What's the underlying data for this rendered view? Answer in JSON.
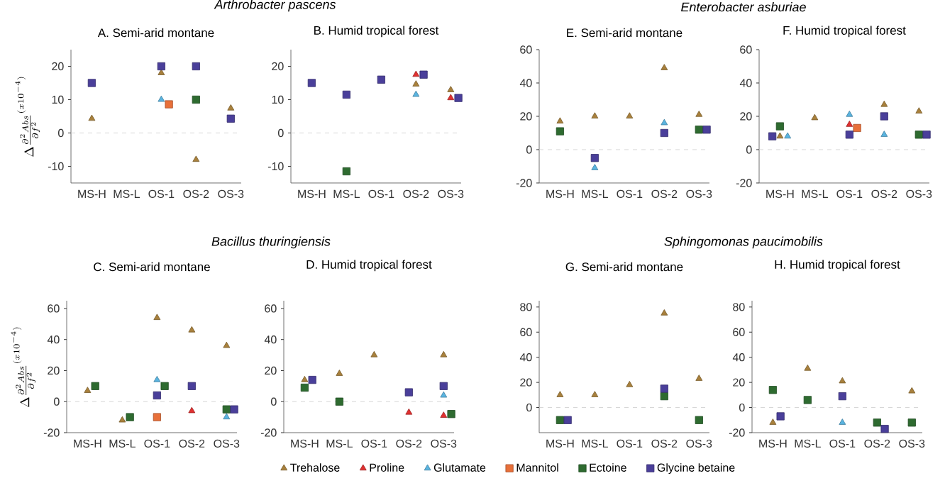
{
  "chart_data": [
    {
      "type": "scatter",
      "subtitle": "*Arthrobacter pascens*",
      "title": "A. Semi-arid montane",
      "ylabel": "\\Delta\\frac{\\partial^{2}Abs}{\\partial f^{2}}^{(x10^{-4})}",
      "categories": [
        "MS-H",
        "MS-L",
        "OS-1",
        "OS-2",
        "OS-3"
      ],
      "ylim": [
        -15,
        25
      ],
      "yticks": [
        -10,
        0,
        10,
        20
      ],
      "ref_lines": [
        {
          "axis": "y",
          "value": 0,
          "color": "#cccccc",
          "line_style": "dashed"
        }
      ],
      "series": [
        {
          "color": "#a8803c",
          "marker": "triangle",
          "values": [
            4.3,
            null,
            18,
            -8,
            7.4
          ]
        },
        {
          "color": "#e03030",
          "marker": "triangle",
          "values": [
            null,
            null,
            null,
            null,
            null
          ]
        },
        {
          "color": "#5ab4e0",
          "marker": "triangle",
          "values": [
            null,
            null,
            10,
            null,
            null
          ]
        },
        {
          "color": "#e8703a",
          "marker": "square",
          "values": [
            null,
            null,
            8.6,
            null,
            null
          ]
        },
        {
          "color": "#2e6b30",
          "marker": "square",
          "values": [
            null,
            null,
            null,
            10,
            null
          ]
        },
        {
          "color": "#4a3f9a",
          "marker": "square",
          "values": [
            15,
            null,
            20,
            20,
            4.3
          ]
        }
      ]
    },
    {
      "type": "scatter",
      "title": "B. Humid tropical forest",
      "categories": [
        "MS-H",
        "MS-L",
        "OS-1",
        "OS-2",
        "OS-3"
      ],
      "ylim": [
        -15,
        25
      ],
      "yticks": [
        -10,
        0,
        10,
        20
      ],
      "ref_lines": [
        {
          "axis": "y",
          "value": 0,
          "color": "#cccccc",
          "line_style": "dashed"
        }
      ],
      "series": [
        {
          "color": "#a8803c",
          "marker": "triangle",
          "values": [
            null,
            null,
            null,
            14.6,
            12.9
          ]
        },
        {
          "color": "#e03030",
          "marker": "triangle",
          "values": [
            null,
            null,
            null,
            17.5,
            10.5
          ]
        },
        {
          "color": "#5ab4e0",
          "marker": "triangle",
          "values": [
            null,
            null,
            null,
            11.5,
            null
          ]
        },
        {
          "color": "#e8703a",
          "marker": "square",
          "values": [
            null,
            null,
            null,
            null,
            null
          ]
        },
        {
          "color": "#2e6b30",
          "marker": "square",
          "values": [
            null,
            -11.5,
            null,
            null,
            null
          ]
        },
        {
          "color": "#4a3f9a",
          "marker": "square",
          "values": [
            15,
            11.5,
            16,
            17.5,
            10.5
          ]
        }
      ]
    },
    {
      "type": "scatter",
      "subtitle": "*Enterobacter asburiae*",
      "title": "E. Semi-arid montane",
      "categories": [
        "MS-H",
        "MS-L",
        "OS-1",
        "OS-2",
        "OS-3"
      ],
      "ylim": [
        -20,
        60
      ],
      "yticks": [
        -20,
        0,
        20,
        40,
        60
      ],
      "ref_lines": [
        {
          "axis": "y",
          "value": 0,
          "color": "#cccccc",
          "line_style": "dashed"
        }
      ],
      "series": [
        {
          "color": "#a8803c",
          "marker": "triangle",
          "values": [
            17,
            20,
            20,
            49,
            21
          ]
        },
        {
          "color": "#e03030",
          "marker": "triangle",
          "values": [
            null,
            null,
            null,
            null,
            null
          ]
        },
        {
          "color": "#5ab4e0",
          "marker": "triangle",
          "values": [
            null,
            -11,
            null,
            16,
            null
          ]
        },
        {
          "color": "#e8703a",
          "marker": "square",
          "values": [
            null,
            null,
            null,
            null,
            null
          ]
        },
        {
          "color": "#2e6b30",
          "marker": "square",
          "values": [
            11,
            null,
            null,
            null,
            12
          ]
        },
        {
          "color": "#4a3f9a",
          "marker": "square",
          "values": [
            null,
            -5,
            null,
            10,
            12
          ]
        }
      ]
    },
    {
      "type": "scatter",
      "title": "F. Humid tropical forest",
      "categories": [
        "MS-H",
        "MS-L",
        "OS-1",
        "OS-2",
        "OS-3"
      ],
      "ylim": [
        -20,
        60
      ],
      "yticks": [
        -20,
        0,
        20,
        40,
        60
      ],
      "ref_lines": [
        {
          "axis": "y",
          "value": 0,
          "color": "#cccccc",
          "line_style": "dashed"
        }
      ],
      "series": [
        {
          "color": "#a8803c",
          "marker": "triangle",
          "values": [
            8,
            19,
            null,
            27,
            23
          ]
        },
        {
          "color": "#e03030",
          "marker": "triangle",
          "values": [
            null,
            null,
            15,
            null,
            null
          ]
        },
        {
          "color": "#5ab4e0",
          "marker": "triangle",
          "values": [
            8,
            null,
            21,
            9,
            null
          ]
        },
        {
          "color": "#e8703a",
          "marker": "square",
          "values": [
            null,
            null,
            13,
            null,
            null
          ]
        },
        {
          "color": "#2e6b30",
          "marker": "square",
          "values": [
            14,
            null,
            null,
            null,
            9
          ]
        },
        {
          "color": "#4a3f9a",
          "marker": "square",
          "values": [
            8,
            null,
            9,
            20,
            9
          ]
        }
      ]
    },
    {
      "type": "scatter",
      "subtitle": "*Bacillus thuringiensis*",
      "title": "C. Semi-arid montane",
      "ylabel": "\\Delta\\frac{\\partial^{2}Abs}{\\partial f^{2}}^{(x10^{-4})}",
      "categories": [
        "MS-H",
        "MS-L",
        "OS-1",
        "OS-2",
        "OS-3"
      ],
      "ylim": [
        -20,
        65
      ],
      "yticks": [
        -20,
        0,
        20,
        40,
        60
      ],
      "legend": "bottom",
      "ref_lines": [
        {
          "axis": "y",
          "value": 0,
          "color": "#cccccc",
          "line_style": "dashed"
        }
      ],
      "series": [
        {
          "name": "Trehalose",
          "color": "#a8803c",
          "marker": "triangle",
          "values": [
            7,
            -12,
            54,
            46,
            36
          ]
        },
        {
          "name": "Proline",
          "color": "#e03030",
          "marker": "triangle",
          "values": [
            null,
            null,
            null,
            -6,
            null
          ]
        },
        {
          "name": "Glutamate",
          "color": "#5ab4e0",
          "marker": "triangle",
          "values": [
            null,
            null,
            14,
            null,
            -10
          ]
        },
        {
          "name": "Mannitol",
          "color": "#e8703a",
          "marker": "square",
          "values": [
            null,
            null,
            -10,
            null,
            null
          ]
        },
        {
          "name": "Ectoine",
          "color": "#2e6b30",
          "marker": "square",
          "values": [
            10,
            -10,
            10,
            null,
            -5
          ]
        },
        {
          "name": "Glycine betaine",
          "color": "#4a3f9a",
          "marker": "square",
          "values": [
            null,
            null,
            4,
            10,
            -5
          ]
        }
      ]
    },
    {
      "type": "scatter",
      "title": "D. Humid tropical forest",
      "categories": [
        "MS-H",
        "MS-L",
        "OS-1",
        "OS-2",
        "OS-3"
      ],
      "ylim": [
        -20,
        65
      ],
      "yticks": [
        -20,
        0,
        20,
        40,
        60
      ],
      "ref_lines": [
        {
          "axis": "y",
          "value": 0,
          "color": "#cccccc",
          "line_style": "dashed"
        }
      ],
      "series": [
        {
          "color": "#a8803c",
          "marker": "triangle",
          "values": [
            14,
            18,
            30,
            null,
            30
          ]
        },
        {
          "color": "#e03030",
          "marker": "triangle",
          "values": [
            null,
            null,
            null,
            -7,
            -9
          ]
        },
        {
          "color": "#5ab4e0",
          "marker": "triangle",
          "values": [
            null,
            null,
            null,
            null,
            4
          ]
        },
        {
          "color": "#e8703a",
          "marker": "square",
          "values": [
            null,
            null,
            null,
            null,
            null
          ]
        },
        {
          "color": "#2e6b30",
          "marker": "square",
          "values": [
            9,
            0,
            null,
            null,
            -8
          ]
        },
        {
          "color": "#4a3f9a",
          "marker": "square",
          "values": [
            14,
            null,
            null,
            6,
            10
          ]
        }
      ]
    },
    {
      "type": "scatter",
      "subtitle": "*Sphingomonas paucimobilis*",
      "title": "G. Semi-arid montane",
      "categories": [
        "MS-H",
        "MS-L",
        "OS-1",
        "OS-2",
        "OS-3"
      ],
      "ylim": [
        -20,
        85
      ],
      "yticks": [
        0,
        20,
        40,
        60,
        80
      ],
      "ref_lines": [
        {
          "axis": "y",
          "value": 0,
          "color": "#cccccc",
          "line_style": "dashed"
        }
      ],
      "series": [
        {
          "color": "#a8803c",
          "marker": "triangle",
          "values": [
            10,
            10,
            18,
            75,
            23
          ]
        },
        {
          "color": "#e03030",
          "marker": "triangle",
          "values": [
            null,
            null,
            null,
            null,
            null
          ]
        },
        {
          "color": "#5ab4e0",
          "marker": "triangle",
          "values": [
            null,
            null,
            null,
            null,
            null
          ]
        },
        {
          "color": "#e8703a",
          "marker": "square",
          "values": [
            null,
            null,
            null,
            null,
            null
          ]
        },
        {
          "color": "#2e6b30",
          "marker": "square",
          "values": [
            -10,
            null,
            null,
            9,
            -10
          ]
        },
        {
          "color": "#4a3f9a",
          "marker": "square",
          "values": [
            -10,
            null,
            null,
            15,
            null
          ]
        }
      ]
    },
    {
      "type": "scatter",
      "title": "H. Humid tropical forest",
      "categories": [
        "MS-H",
        "MS-L",
        "OS-1",
        "OS-2",
        "OS-3"
      ],
      "ylim": [
        -20,
        85
      ],
      "yticks": [
        -20,
        0,
        20,
        40,
        60,
        80
      ],
      "ref_lines": [
        {
          "axis": "y",
          "value": 0,
          "color": "#cccccc",
          "line_style": "dashed"
        }
      ],
      "series": [
        {
          "color": "#a8803c",
          "marker": "triangle",
          "values": [
            -12,
            31,
            21,
            null,
            13
          ]
        },
        {
          "color": "#e03030",
          "marker": "triangle",
          "values": [
            null,
            null,
            null,
            null,
            null
          ]
        },
        {
          "color": "#5ab4e0",
          "marker": "triangle",
          "values": [
            null,
            null,
            -12,
            null,
            null
          ]
        },
        {
          "color": "#e8703a",
          "marker": "square",
          "values": [
            null,
            null,
            null,
            null,
            null
          ]
        },
        {
          "color": "#2e6b30",
          "marker": "square",
          "values": [
            14,
            6,
            null,
            -12,
            -12
          ]
        },
        {
          "color": "#4a3f9a",
          "marker": "square",
          "values": [
            -7,
            null,
            9,
            -17,
            null
          ]
        }
      ]
    }
  ]
}
